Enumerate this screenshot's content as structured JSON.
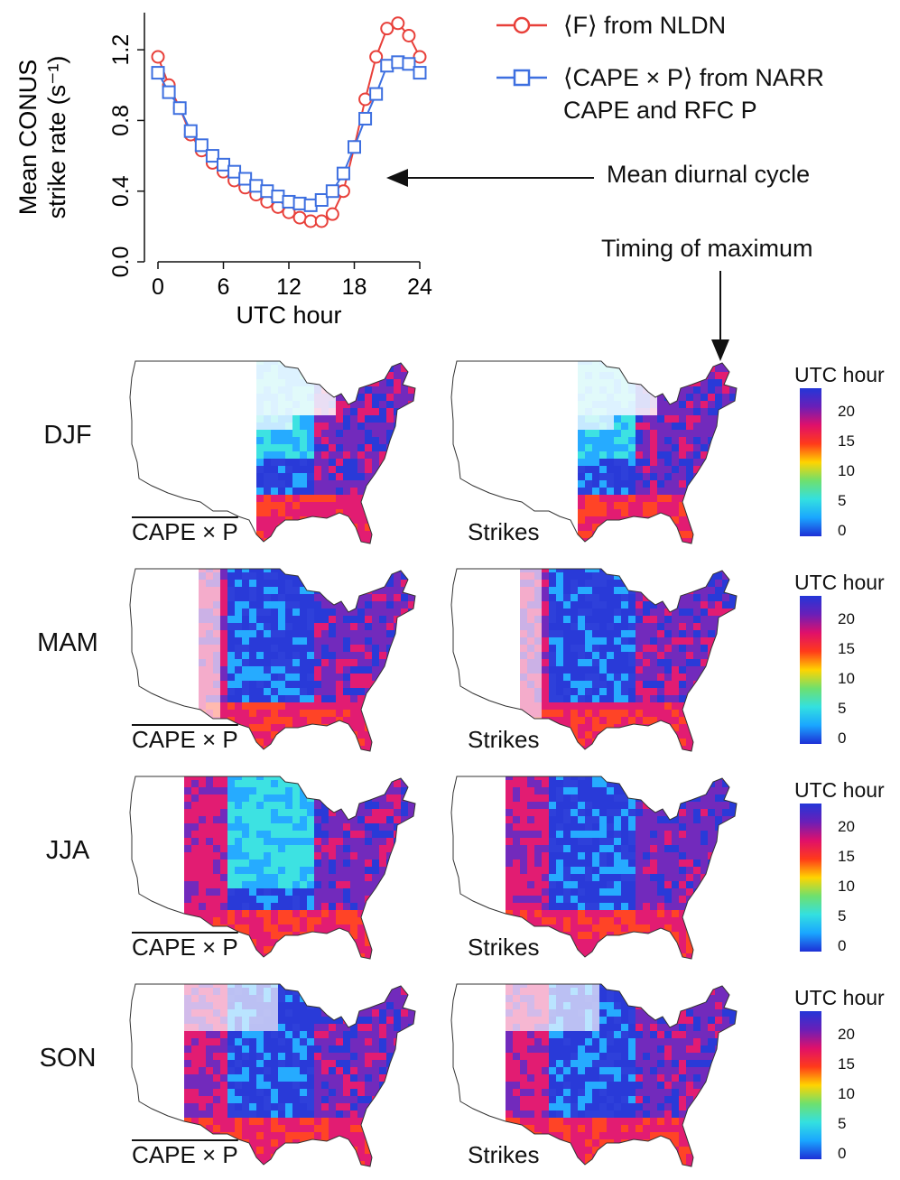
{
  "chart_data": {
    "type": "line",
    "xlabel": "UTC hour",
    "ylabel": "Mean CONUS strike rate (s⁻¹)",
    "ylabel_lines": [
      "Mean CONUS",
      "strike rate (s⁻¹)"
    ],
    "xlim": [
      0,
      24
    ],
    "ylim": [
      0.0,
      1.4
    ],
    "xticks": [
      "0",
      "6",
      "12",
      "18",
      "24"
    ],
    "yticks": [
      "0.0",
      "0.4",
      "0.8",
      "1.2"
    ],
    "grid": false,
    "x": [
      0,
      1,
      2,
      3,
      4,
      5,
      6,
      7,
      8,
      9,
      10,
      11,
      12,
      13,
      14,
      15,
      16,
      17,
      18,
      19,
      20,
      21,
      22,
      23,
      24
    ],
    "series": [
      {
        "name": "⟨F⟩ from NLDN",
        "color": "#e8403a",
        "marker": "circle",
        "values": [
          1.16,
          1.0,
          0.87,
          0.72,
          0.63,
          0.56,
          0.51,
          0.46,
          0.42,
          0.38,
          0.34,
          0.31,
          0.28,
          0.25,
          0.23,
          0.23,
          0.27,
          0.4,
          0.65,
          0.92,
          1.16,
          1.32,
          1.35,
          1.28,
          1.16
        ]
      },
      {
        "name": "⟨CAPE × P⟩ from NARR CAPE and RFC P",
        "color": "#3d6fe0",
        "marker": "square",
        "values": [
          1.07,
          0.96,
          0.87,
          0.74,
          0.66,
          0.6,
          0.55,
          0.51,
          0.47,
          0.43,
          0.4,
          0.37,
          0.34,
          0.33,
          0.32,
          0.35,
          0.4,
          0.5,
          0.65,
          0.81,
          0.95,
          1.11,
          1.13,
          1.12,
          1.07
        ]
      }
    ]
  },
  "legend": {
    "items": [
      {
        "text": "⟨F⟩ from NLDN"
      },
      {
        "line1": "⟨CAPE × P⟩ from NARR",
        "line2": "CAPE and RFC P"
      }
    ]
  },
  "annotations": {
    "diurnal": "Mean diurnal cycle",
    "timing": "Timing of maximum"
  },
  "maps": {
    "seasons": [
      "DJF",
      "MAM",
      "JJA",
      "SON"
    ],
    "left_caption": "CAPE × P",
    "right_caption": "Strikes",
    "colorbar_title": "UTC hour",
    "colorbar_ticks": [
      "20",
      "15",
      "10",
      "5",
      "0"
    ]
  },
  "colors": {
    "nldn": "#e8403a",
    "cape": "#3d6fe0",
    "colormap": [
      "#1d2fd6",
      "#1aa6ff",
      "#33e0e0",
      "#6ee06e",
      "#ffd400",
      "#ff3a1a",
      "#e0106a",
      "#6a1fb8",
      "#2336d8"
    ]
  }
}
